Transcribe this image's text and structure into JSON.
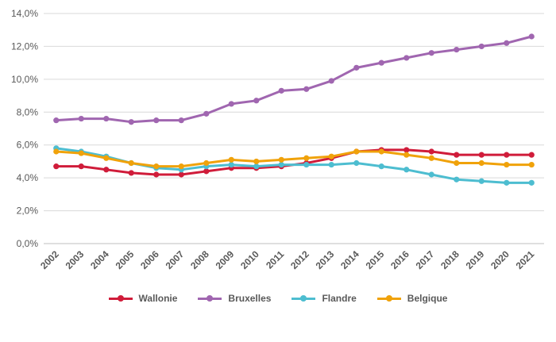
{
  "chart_data": {
    "type": "line",
    "title": "",
    "xlabel": "",
    "ylabel": "",
    "categories": [
      "2002",
      "2003",
      "2004",
      "2005",
      "2006",
      "2007",
      "2008",
      "2009",
      "2010",
      "2011",
      "2012",
      "2013",
      "2014",
      "2015",
      "2016",
      "2017",
      "2018",
      "2019",
      "2020",
      "2021"
    ],
    "y_ticks": [
      "0,0%",
      "2,0%",
      "4,0%",
      "6,0%",
      "8,0%",
      "10,0%",
      "12,0%",
      "14,0%"
    ],
    "ylim": [
      0,
      14
    ],
    "grid": true,
    "legend_position": "bottom",
    "series": [
      {
        "name": "Wallonie",
        "color": "#d01c3a",
        "values": [
          4.7,
          4.7,
          4.5,
          4.3,
          4.2,
          4.2,
          4.4,
          4.6,
          4.6,
          4.7,
          4.9,
          5.2,
          5.6,
          5.7,
          5.7,
          5.6,
          5.4,
          5.4,
          5.4,
          5.4
        ]
      },
      {
        "name": "Bruxelles",
        "color": "#a066b0",
        "values": [
          7.5,
          7.6,
          7.6,
          7.4,
          7.5,
          7.5,
          7.9,
          8.5,
          8.7,
          9.3,
          9.4,
          9.9,
          10.7,
          11.0,
          11.3,
          11.6,
          11.8,
          12.0,
          12.2,
          12.6
        ]
      },
      {
        "name": "Flandre",
        "color": "#4dbdd0",
        "values": [
          5.8,
          5.6,
          5.3,
          4.9,
          4.6,
          4.5,
          4.7,
          4.8,
          4.7,
          4.8,
          4.8,
          4.8,
          4.9,
          4.7,
          4.5,
          4.2,
          3.9,
          3.8,
          3.7,
          3.7
        ]
      },
      {
        "name": "Belgique",
        "color": "#f0a20a",
        "values": [
          5.6,
          5.5,
          5.2,
          4.9,
          4.7,
          4.7,
          4.9,
          5.1,
          5.0,
          5.1,
          5.2,
          5.3,
          5.6,
          5.6,
          5.4,
          5.2,
          4.9,
          4.9,
          4.8,
          4.8
        ]
      }
    ]
  }
}
